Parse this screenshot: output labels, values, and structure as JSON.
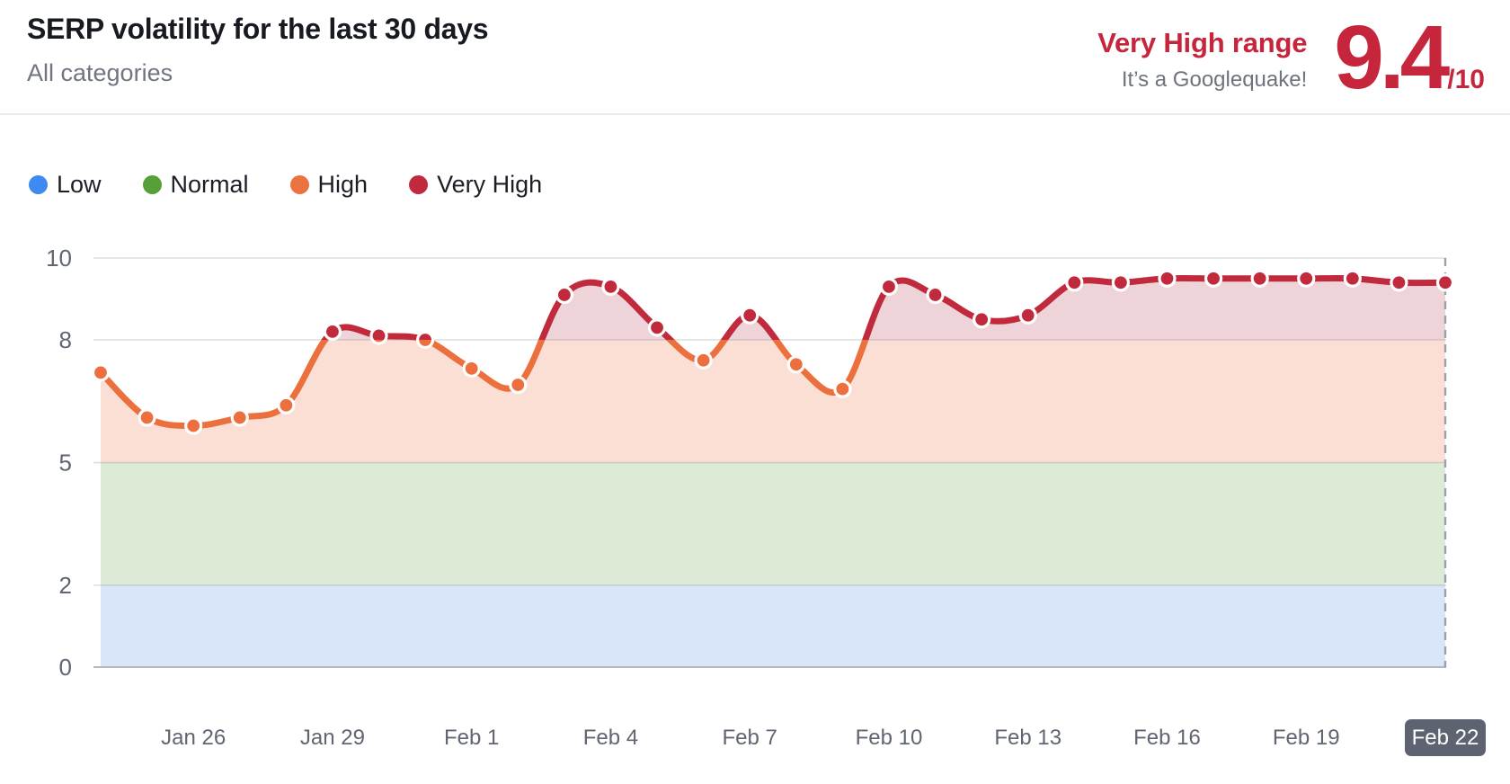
{
  "header": {
    "title": "SERP volatility for the last 30 days",
    "subtitle": "All categories",
    "range_label": "Very High range",
    "range_caption": "It’s a Googlequake!",
    "score": "9.4",
    "score_suffix": "/10",
    "accent_red": "#c5263c"
  },
  "legend": {
    "items": [
      {
        "label": "Low",
        "color": "#3e8af0"
      },
      {
        "label": "Normal",
        "color": "#57a038"
      },
      {
        "label": "High",
        "color": "#eb7340"
      },
      {
        "label": "Very High",
        "color": "#c02a3c"
      }
    ]
  },
  "chart_data": {
    "type": "area",
    "title": "SERP volatility for the last 30 days",
    "subtitle": "All categories",
    "ylim": [
      0,
      10
    ],
    "y_ticks": [
      0,
      2,
      5,
      8,
      10
    ],
    "grid": true,
    "legend_position": "top-left",
    "x": [
      "Jan 24",
      "Jan 25",
      "Jan 26",
      "Jan 27",
      "Jan 28",
      "Jan 29",
      "Jan 30",
      "Jan 31",
      "Feb 1",
      "Feb 2",
      "Feb 3",
      "Feb 4",
      "Feb 5",
      "Feb 6",
      "Feb 7",
      "Feb 8",
      "Feb 9",
      "Feb 10",
      "Feb 11",
      "Feb 12",
      "Feb 13",
      "Feb 14",
      "Feb 15",
      "Feb 16",
      "Feb 17",
      "Feb 18",
      "Feb 19",
      "Feb 20",
      "Feb 21",
      "Feb 22"
    ],
    "values": [
      7.2,
      6.1,
      5.9,
      6.1,
      6.4,
      8.2,
      8.1,
      8.0,
      7.3,
      6.9,
      9.1,
      9.3,
      8.3,
      7.5,
      8.6,
      7.4,
      6.8,
      9.3,
      9.1,
      8.5,
      8.6,
      9.4,
      9.4,
      9.5,
      9.5,
      9.5,
      9.5,
      9.5,
      9.4,
      9.4
    ],
    "x_tick_labels": [
      "Jan 26",
      "Jan 29",
      "Feb 1",
      "Feb 4",
      "Feb 7",
      "Feb 10",
      "Feb 13",
      "Feb 16",
      "Feb 19",
      "Feb 22"
    ],
    "current_day": "Feb 22",
    "bands": [
      {
        "from": 0,
        "to": 2,
        "label": "Low",
        "fill": "#d9e6fa"
      },
      {
        "from": 2,
        "to": 5,
        "label": "Normal",
        "fill": "#ddead6"
      },
      {
        "from": 5,
        "to": 8,
        "label": "High",
        "fill": "#fbdfd5"
      },
      {
        "from": 8,
        "to": 10,
        "label": "Very High",
        "fill": "#eed4d8"
      }
    ],
    "line_colors": {
      "below_threshold": "#eb703d",
      "above_threshold": "#c02a3c",
      "threshold": 8
    }
  }
}
